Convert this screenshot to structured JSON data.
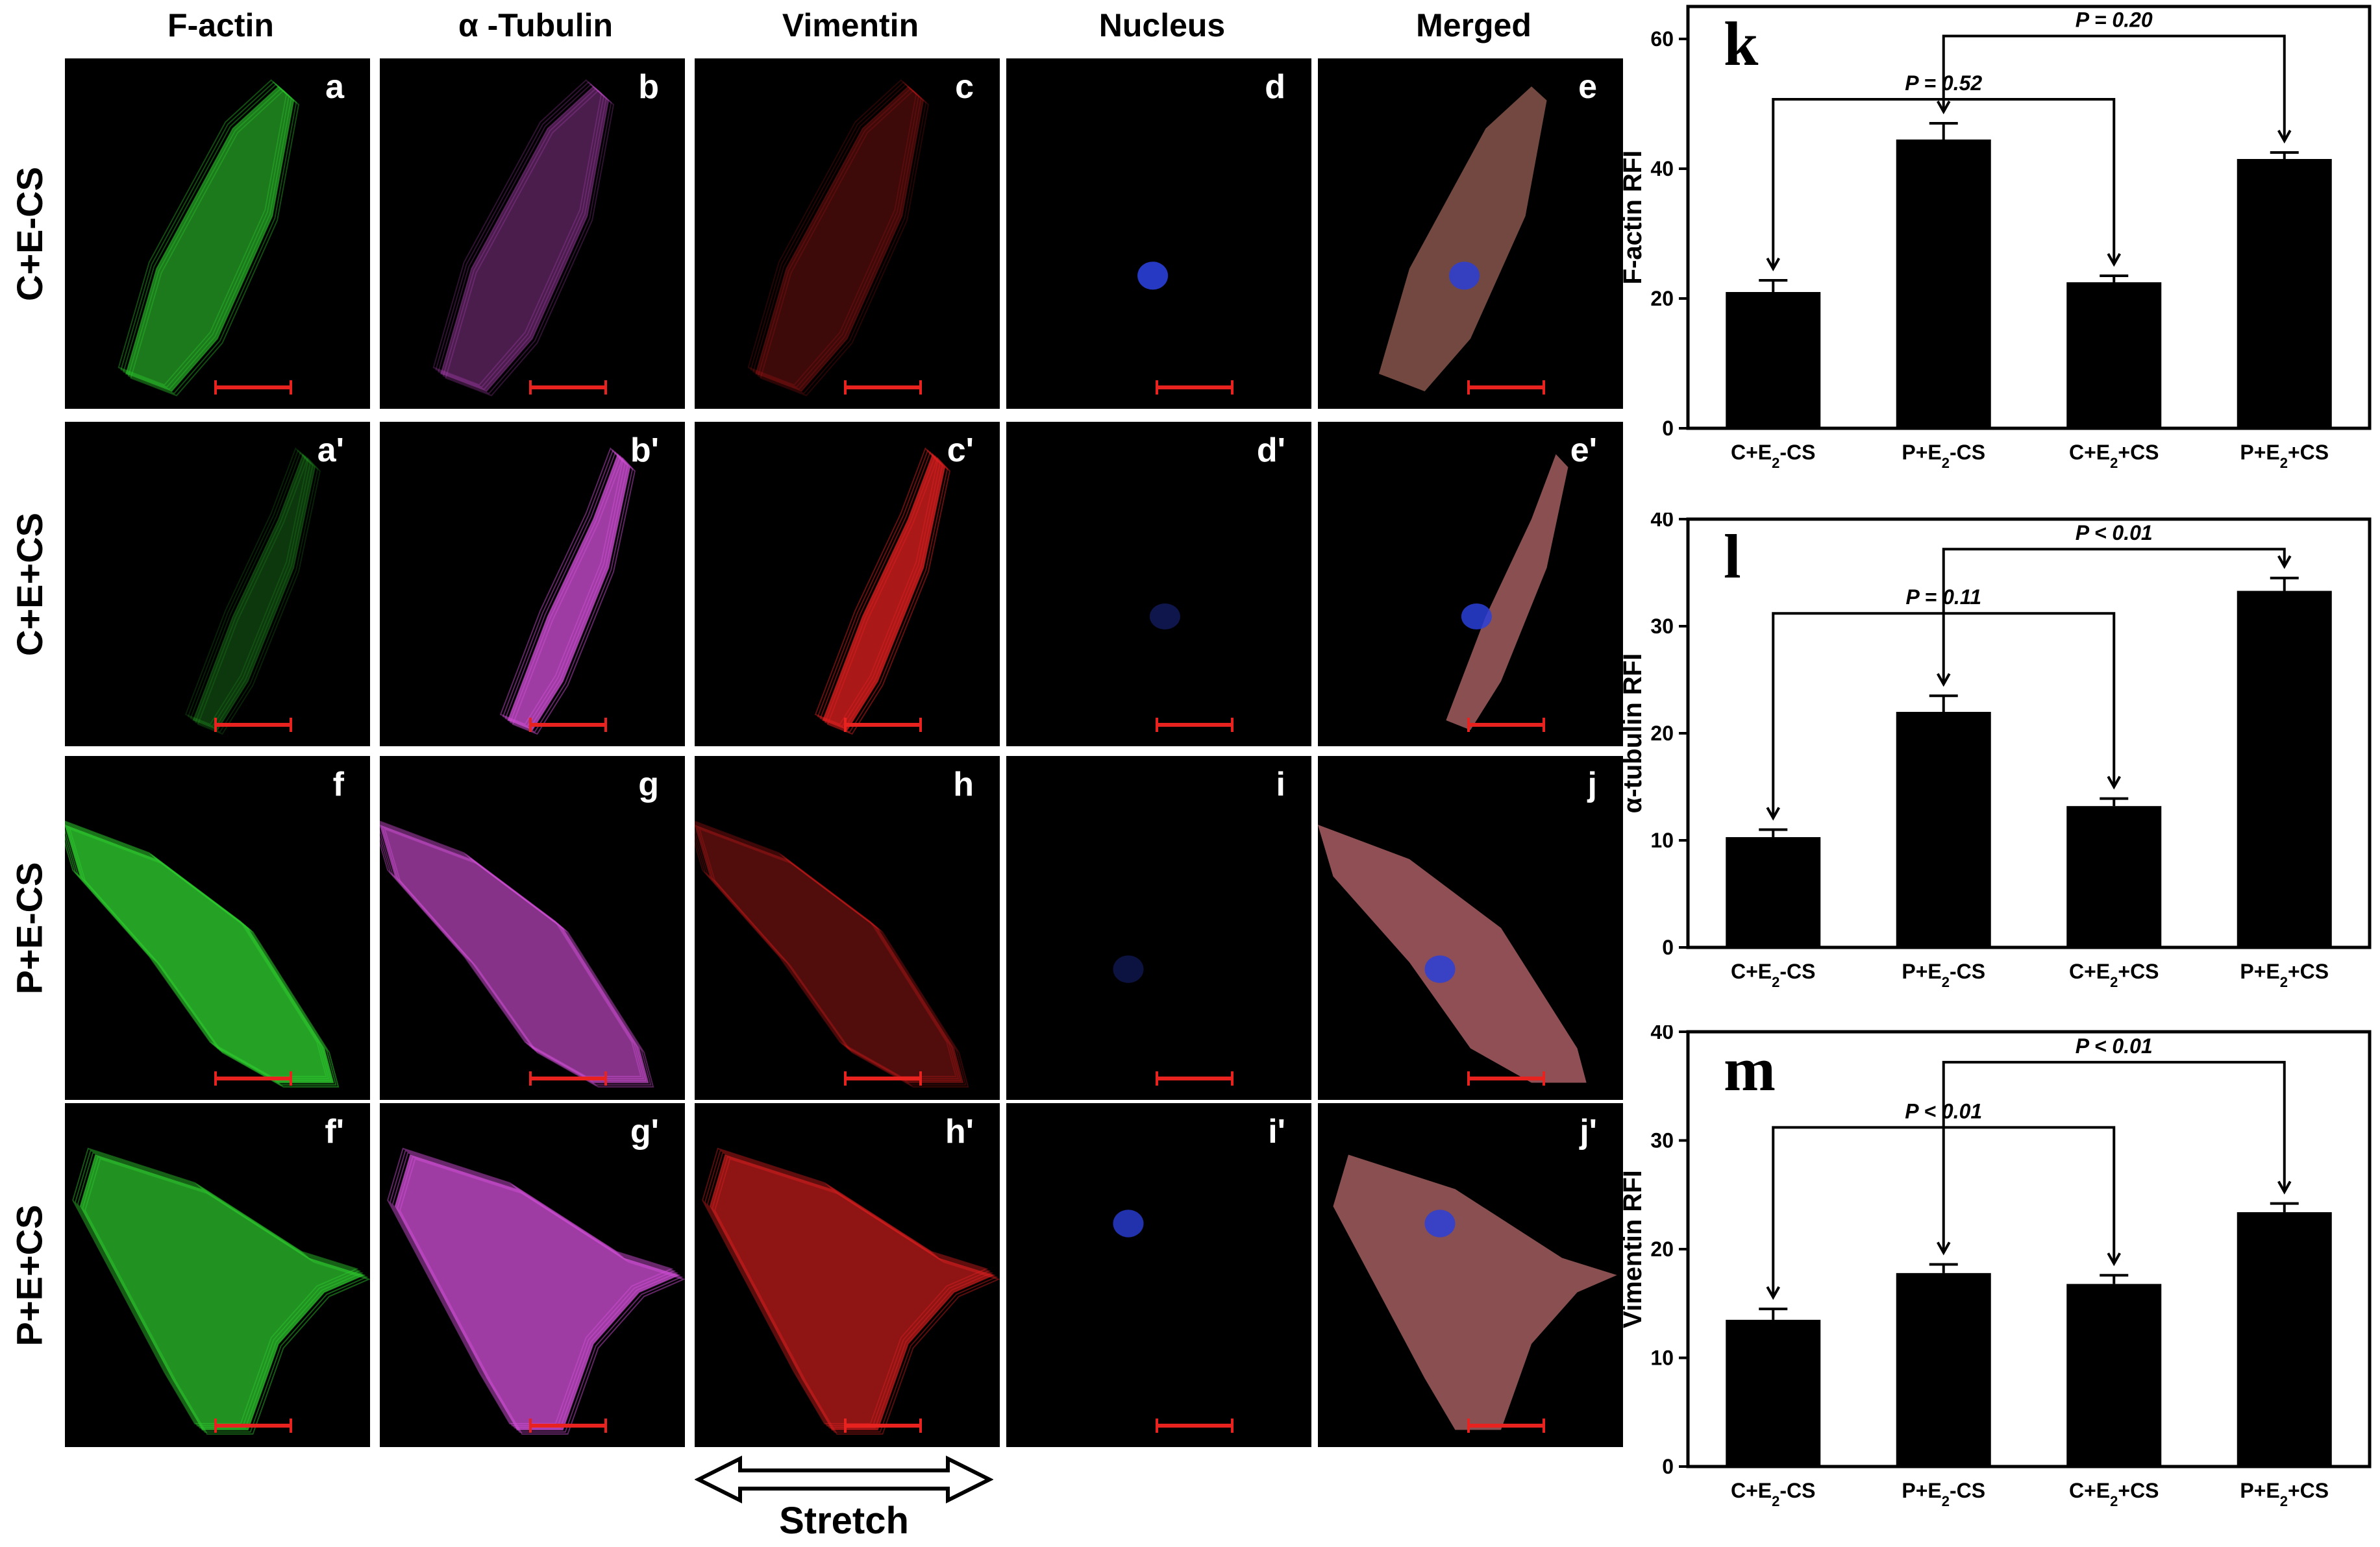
{
  "columns": [
    "F-actin",
    "α -Tubulin",
    "Vimentin",
    "Nucleus",
    "Merged"
  ],
  "rows": [
    "C+E-CS",
    "C+E+CS",
    "P+E-CS",
    "P+E+CS"
  ],
  "panels": [
    [
      "a",
      "b",
      "c",
      "d",
      "e"
    ],
    [
      "a'",
      "b'",
      "c'",
      "d'",
      "e'"
    ],
    [
      "f",
      "g",
      "h",
      "i",
      "j"
    ],
    [
      "f'",
      "g'",
      "h'",
      "i'",
      "j'"
    ]
  ],
  "stretch_label": "Stretch",
  "colors": {
    "f_actin": "#2ec92e",
    "tubulin": "#d14fd6",
    "vimentin": "#e02020",
    "nucleus": "#2a3fd8",
    "scale_bar": "#e8231f"
  },
  "chart_data": [
    {
      "type": "bar",
      "panel_letter": "k",
      "categories": [
        "C+E2-CS",
        "P+E2-CS",
        "C+E2+CS",
        "P+E2+CS"
      ],
      "values": [
        21,
        44.5,
        22.5,
        41.5
      ],
      "errors": [
        1.8,
        2.5,
        1.0,
        1.0
      ],
      "ylabel": "F-actin RFI",
      "ylim": [
        0,
        65
      ],
      "yticks": [
        0,
        20,
        40,
        60
      ],
      "comparisons": [
        {
          "from": 1,
          "to": 3,
          "label": "P = 0.20",
          "tier": 2
        },
        {
          "from": 0,
          "to": 2,
          "label": "P = 0.52",
          "tier": 1
        }
      ]
    },
    {
      "type": "bar",
      "panel_letter": "l",
      "categories": [
        "C+E2-CS",
        "P+E2-CS",
        "C+E2+CS",
        "P+E2+CS"
      ],
      "values": [
        10.3,
        22,
        13.2,
        33.3
      ],
      "errors": [
        0.7,
        1.5,
        0.7,
        1.2
      ],
      "ylabel": "α-tubulin RFI",
      "ylim": [
        0,
        40
      ],
      "yticks": [
        0,
        10,
        20,
        30,
        40
      ],
      "comparisons": [
        {
          "from": 1,
          "to": 3,
          "label": "P < 0.01",
          "tier": 2
        },
        {
          "from": 0,
          "to": 2,
          "label": "P = 0.11",
          "tier": 1
        }
      ]
    },
    {
      "type": "bar",
      "panel_letter": "m",
      "categories": [
        "C+E2-CS",
        "P+E2-CS",
        "C+E2+CS",
        "P+E2+CS"
      ],
      "values": [
        13.5,
        17.8,
        16.8,
        23.4
      ],
      "errors": [
        1.0,
        0.8,
        0.8,
        0.8
      ],
      "ylabel": "Vimentin RFI",
      "ylim": [
        0,
        40
      ],
      "yticks": [
        0,
        10,
        20,
        30,
        40
      ],
      "comparisons": [
        {
          "from": 1,
          "to": 3,
          "label": "P < 0.01",
          "tier": 2
        },
        {
          "from": 0,
          "to": 2,
          "label": "P < 0.01",
          "tier": 1
        }
      ]
    }
  ]
}
